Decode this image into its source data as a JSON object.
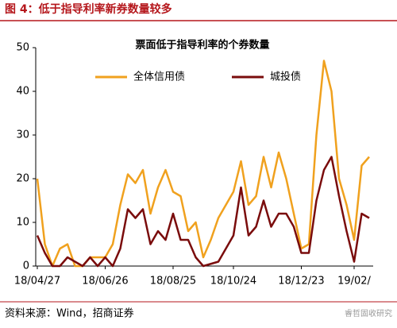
{
  "header": {
    "title": "图 4：低于指导利率新券数量较多"
  },
  "chart_data": {
    "type": "line",
    "title": "票面低于指导利率的个券数量",
    "categories": [
      "18/04/27",
      null,
      null,
      null,
      null,
      null,
      null,
      null,
      null,
      "18/06/26",
      null,
      null,
      null,
      null,
      null,
      null,
      null,
      null,
      "18/08/25",
      null,
      null,
      null,
      null,
      null,
      null,
      null,
      "18/10/24",
      null,
      null,
      null,
      null,
      null,
      null,
      null,
      null,
      "18/12/23",
      null,
      null,
      null,
      null,
      null,
      null,
      "19/02/",
      null,
      null
    ],
    "series": [
      {
        "name": "全体信用债",
        "color": "#f0a11e",
        "values": [
          20,
          5,
          0,
          4,
          5,
          0,
          0,
          2,
          2,
          2,
          5,
          14,
          21,
          19,
          22,
          12,
          18,
          22,
          17,
          16,
          8,
          10,
          2,
          6,
          11,
          14,
          17,
          24,
          14,
          16,
          25,
          18,
          26,
          20,
          12,
          4,
          5,
          30,
          47,
          40,
          20,
          14,
          6,
          23,
          25
        ]
      },
      {
        "name": "城投债",
        "color": "#7a0c0c",
        "values": [
          7,
          3,
          0,
          0,
          2,
          1,
          0,
          2,
          0,
          2,
          0,
          4,
          13,
          11,
          13,
          5,
          8,
          6,
          12,
          6,
          6,
          2,
          0,
          0.5,
          1,
          4,
          7,
          18,
          7,
          9,
          15,
          9,
          12,
          12,
          9,
          3,
          3,
          15,
          22,
          25,
          16,
          8,
          1,
          12,
          11
        ]
      }
    ],
    "ylim": [
      0,
      50
    ],
    "yticks": [
      0,
      10,
      20,
      30,
      40,
      50
    ]
  },
  "footer": {
    "source": "资料来源：Wind，招商证券",
    "watermark": "睿哲固收研究"
  }
}
